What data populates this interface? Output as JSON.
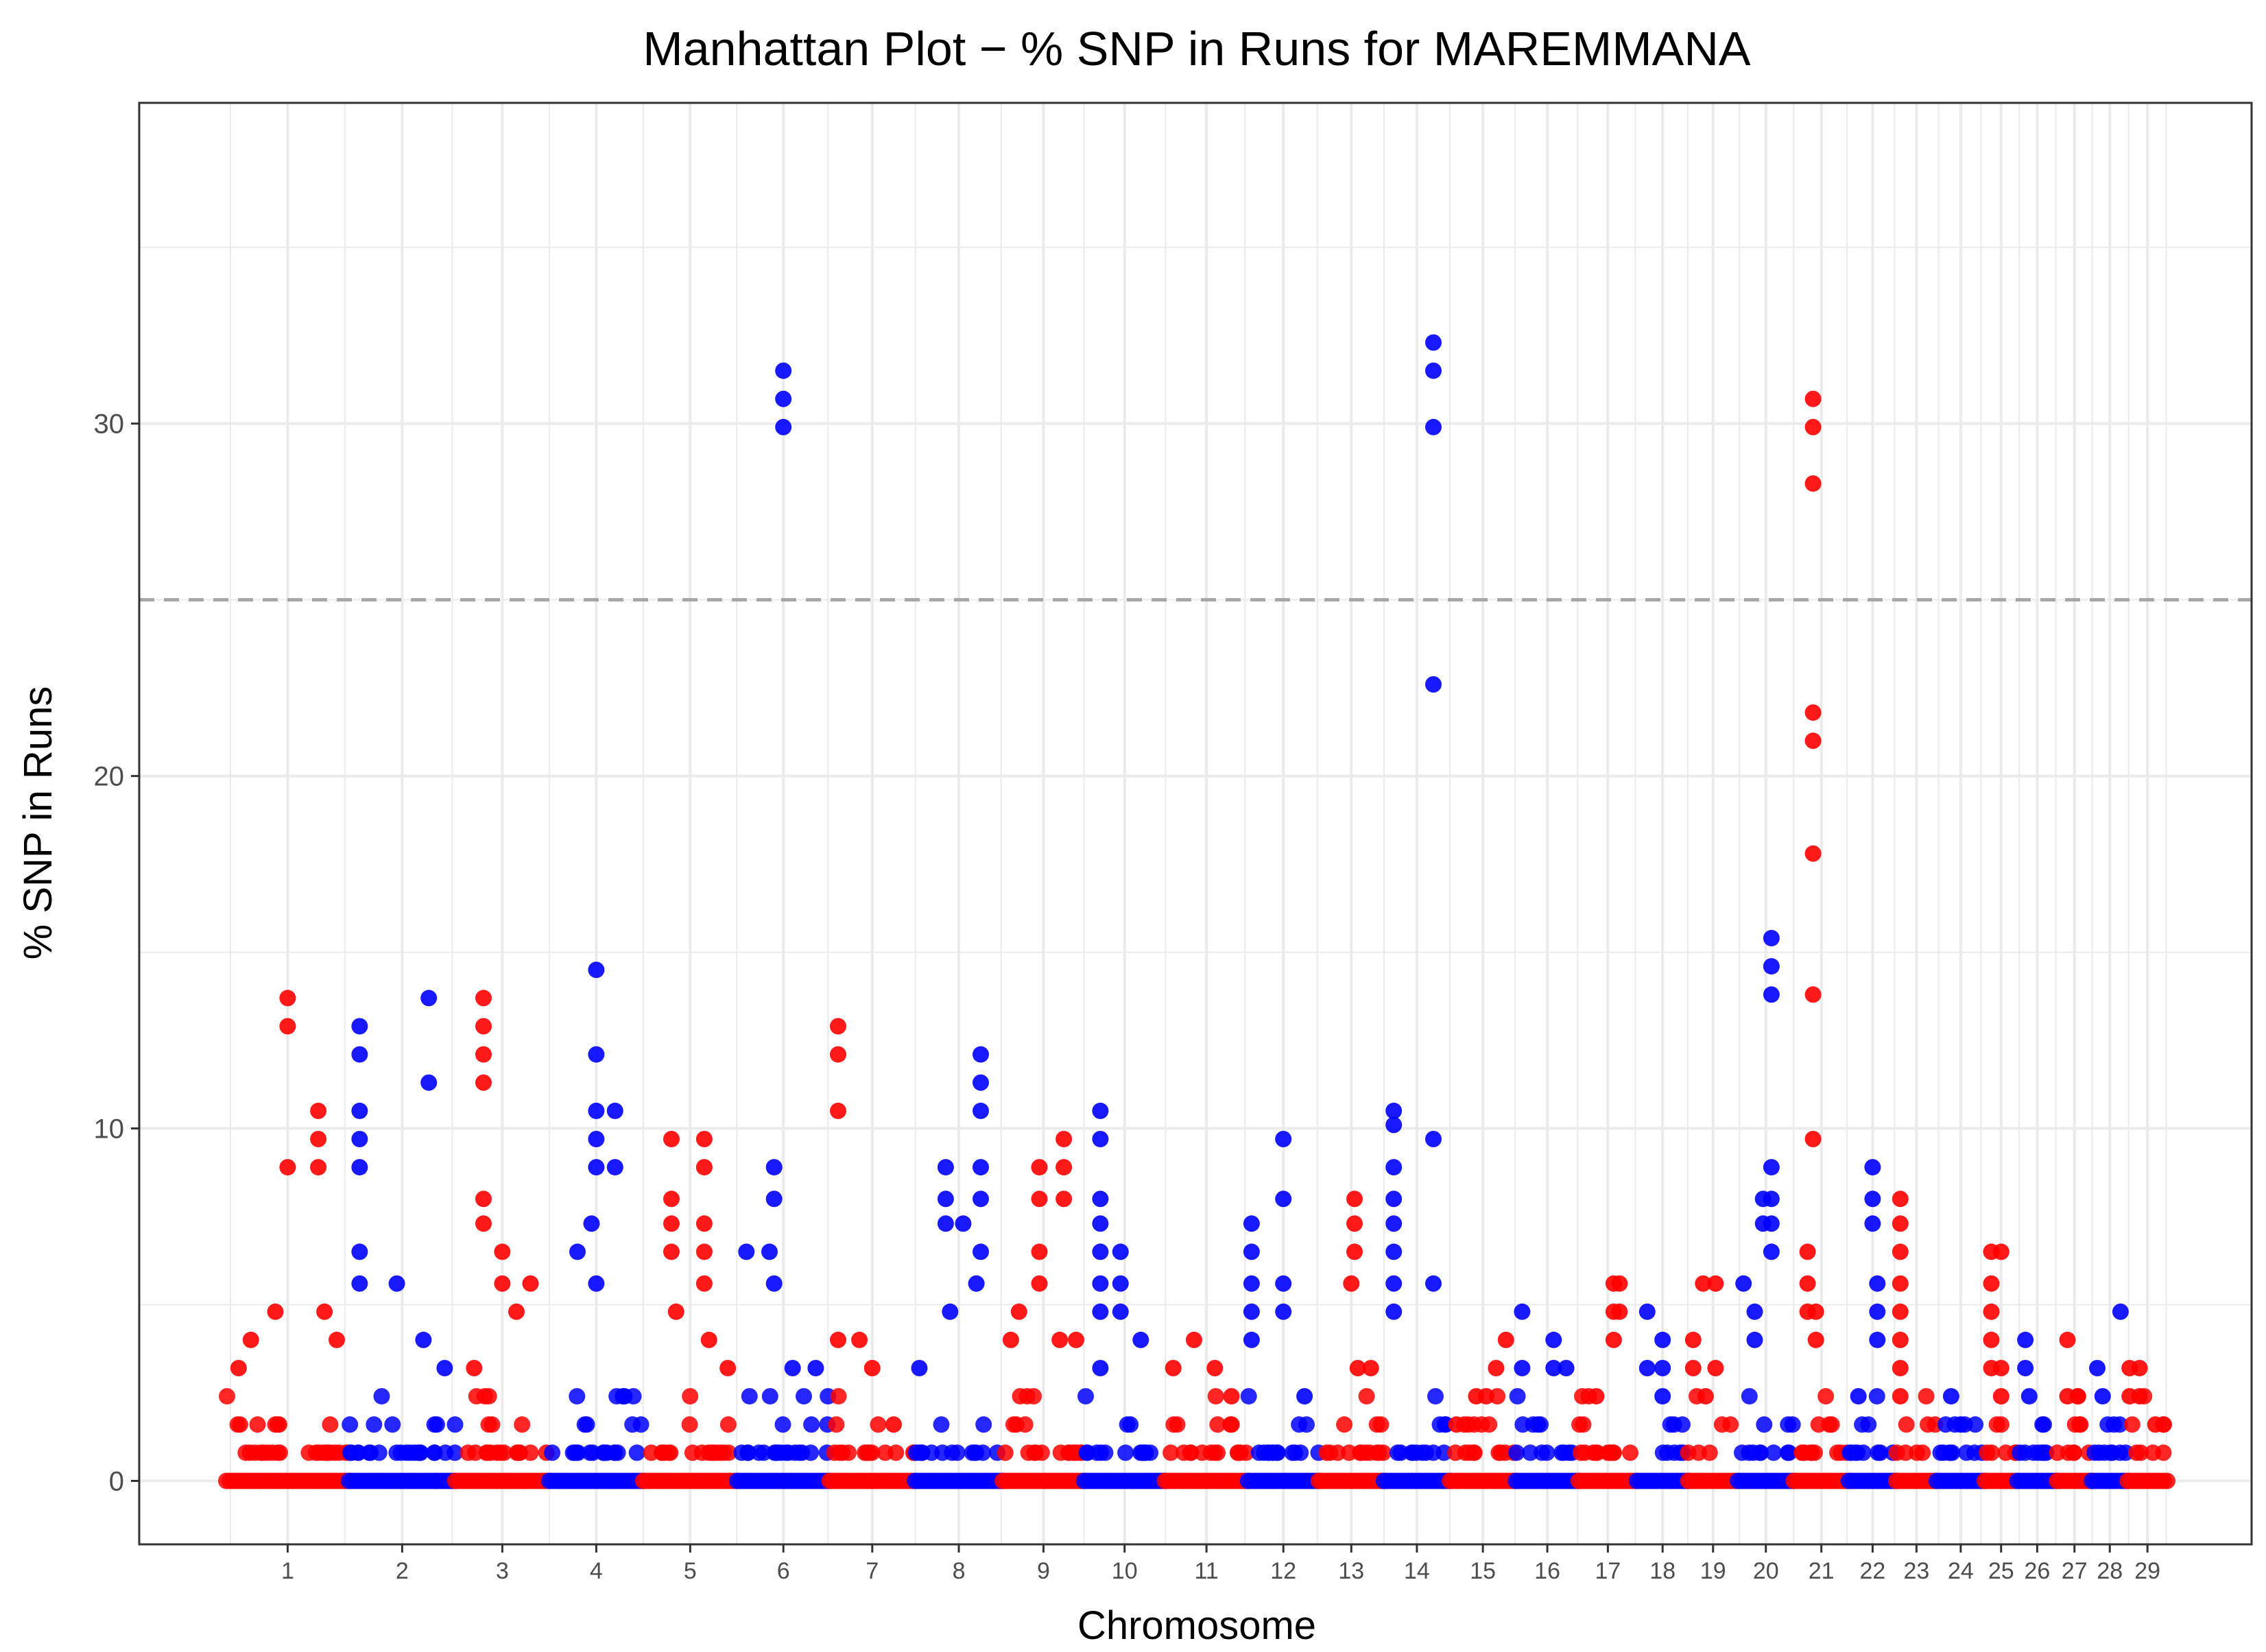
{
  "chart_data": {
    "type": "scatter",
    "title": "Manhattan Plot − % SNP in Runs for  MAREMMANA",
    "xlabel": "Chromosome",
    "ylabel": "% SNP in Runs",
    "ylim": [
      -1.8,
      39.1
    ],
    "yticks": [
      0,
      10,
      20,
      30
    ],
    "threshold": 25,
    "colors": {
      "odd": "#ff0000",
      "even": "#0000ff",
      "threshold": "#a6a6a6",
      "grid": "#ebebeb",
      "border": "#333333"
    },
    "chromosomes": [
      {
        "label": "1",
        "start": 0,
        "length": 158,
        "peaks": [
          [
            0.5,
            13.7
          ],
          [
            0.5,
            12.9
          ],
          [
            0.5,
            8.9
          ],
          [
            0.75,
            10.5
          ],
          [
            0.75,
            9.7
          ],
          [
            0.75,
            8.9
          ],
          [
            0.2,
            4.0
          ],
          [
            0.4,
            4.8
          ],
          [
            0.8,
            4.8
          ],
          [
            0.1,
            3.2
          ],
          [
            0.9,
            4.0
          ]
        ]
      },
      {
        "label": "2",
        "start": 158,
        "length": 137,
        "peaks": [
          [
            0.1,
            12.9
          ],
          [
            0.1,
            12.1
          ],
          [
            0.1,
            10.5
          ],
          [
            0.1,
            9.7
          ],
          [
            0.1,
            8.9
          ],
          [
            0.1,
            6.5
          ],
          [
            0.1,
            5.6
          ],
          [
            0.45,
            5.6
          ],
          [
            0.75,
            13.7
          ],
          [
            0.75,
            11.3
          ],
          [
            0.7,
            4.0
          ],
          [
            0.9,
            3.2
          ]
        ]
      },
      {
        "label": "3",
        "start": 295,
        "length": 121,
        "peaks": [
          [
            0.3,
            13.7
          ],
          [
            0.3,
            12.9
          ],
          [
            0.3,
            12.1
          ],
          [
            0.3,
            11.3
          ],
          [
            0.3,
            8.0
          ],
          [
            0.3,
            7.3
          ],
          [
            0.5,
            6.5
          ],
          [
            0.5,
            5.6
          ],
          [
            0.8,
            5.6
          ],
          [
            0.65,
            4.8
          ],
          [
            0.2,
            3.2
          ]
        ]
      },
      {
        "label": "4",
        "start": 416,
        "length": 121,
        "peaks": [
          [
            0.5,
            14.5
          ],
          [
            0.5,
            12.1
          ],
          [
            0.5,
            10.5
          ],
          [
            0.5,
            9.7
          ],
          [
            0.5,
            8.9
          ],
          [
            0.7,
            10.5
          ],
          [
            0.7,
            8.9
          ],
          [
            0.3,
            6.5
          ],
          [
            0.45,
            7.3
          ],
          [
            0.5,
            5.6
          ],
          [
            0.8,
            2.4
          ]
        ]
      },
      {
        "label": "5",
        "start": 537,
        "length": 121,
        "peaks": [
          [
            0.3,
            9.7
          ],
          [
            0.3,
            8.0
          ],
          [
            0.3,
            7.3
          ],
          [
            0.3,
            6.5
          ],
          [
            0.35,
            4.8
          ],
          [
            0.65,
            9.7
          ],
          [
            0.65,
            8.9
          ],
          [
            0.65,
            7.3
          ],
          [
            0.65,
            6.5
          ],
          [
            0.65,
            5.6
          ],
          [
            0.7,
            4.0
          ],
          [
            0.9,
            3.2
          ]
        ]
      },
      {
        "label": "6",
        "start": 658,
        "length": 119,
        "peaks": [
          [
            0.5,
            31.5
          ],
          [
            0.5,
            30.7
          ],
          [
            0.5,
            29.9
          ],
          [
            0.4,
            8.9
          ],
          [
            0.4,
            8.0
          ],
          [
            0.35,
            6.5
          ],
          [
            0.4,
            5.6
          ],
          [
            0.1,
            6.5
          ],
          [
            0.6,
            3.2
          ],
          [
            0.85,
            3.2
          ]
        ]
      },
      {
        "label": "7",
        "start": 777,
        "length": 110,
        "peaks": [
          [
            0.1,
            12.9
          ],
          [
            0.1,
            12.1
          ],
          [
            0.1,
            10.5
          ],
          [
            0.1,
            4.0
          ],
          [
            0.35,
            4.0
          ],
          [
            0.5,
            3.2
          ],
          [
            0.75,
            1.6
          ]
        ]
      },
      {
        "label": "8",
        "start": 887,
        "length": 113,
        "peaks": [
          [
            0.35,
            8.9
          ],
          [
            0.35,
            8.0
          ],
          [
            0.35,
            7.3
          ],
          [
            0.55,
            7.3
          ],
          [
            0.75,
            12.1
          ],
          [
            0.75,
            11.3
          ],
          [
            0.75,
            10.5
          ],
          [
            0.75,
            8.9
          ],
          [
            0.75,
            8.0
          ],
          [
            0.75,
            6.5
          ],
          [
            0.7,
            5.6
          ],
          [
            0.05,
            3.2
          ],
          [
            0.4,
            4.8
          ]
        ]
      },
      {
        "label": "9",
        "start": 1000,
        "length": 105,
        "peaks": [
          [
            0.2,
            4.8
          ],
          [
            0.1,
            4.0
          ],
          [
            0.45,
            8.9
          ],
          [
            0.45,
            8.0
          ],
          [
            0.45,
            6.5
          ],
          [
            0.45,
            5.6
          ],
          [
            0.75,
            9.7
          ],
          [
            0.75,
            8.9
          ],
          [
            0.75,
            8.0
          ],
          [
            0.7,
            4.0
          ],
          [
            0.9,
            4.0
          ]
        ]
      },
      {
        "label": "10",
        "start": 1105,
        "length": 104,
        "peaks": [
          [
            0.2,
            10.5
          ],
          [
            0.2,
            9.7
          ],
          [
            0.2,
            8.0
          ],
          [
            0.2,
            7.3
          ],
          [
            0.2,
            6.5
          ],
          [
            0.2,
            5.6
          ],
          [
            0.2,
            4.8
          ],
          [
            0.2,
            3.2
          ],
          [
            0.45,
            6.5
          ],
          [
            0.45,
            5.6
          ],
          [
            0.45,
            4.8
          ],
          [
            0.7,
            4.0
          ]
        ]
      },
      {
        "label": "11",
        "start": 1209,
        "length": 107,
        "peaks": [
          [
            0.1,
            3.2
          ],
          [
            0.35,
            4.0
          ],
          [
            0.6,
            3.2
          ],
          [
            0.8,
            2.4
          ]
        ]
      },
      {
        "label": "12",
        "start": 1316,
        "length": 91,
        "peaks": [
          [
            0.05,
            7.3
          ],
          [
            0.05,
            6.5
          ],
          [
            0.05,
            5.6
          ],
          [
            0.05,
            4.8
          ],
          [
            0.05,
            4.0
          ],
          [
            0.5,
            9.7
          ],
          [
            0.5,
            8.0
          ],
          [
            0.5,
            5.6
          ],
          [
            0.5,
            4.8
          ],
          [
            0.8,
            2.4
          ]
        ]
      },
      {
        "label": "13",
        "start": 1407,
        "length": 84,
        "peaks": [
          [
            0.55,
            8.0
          ],
          [
            0.55,
            7.3
          ],
          [
            0.55,
            6.5
          ],
          [
            0.5,
            5.6
          ],
          [
            0.6,
            3.2
          ],
          [
            0.8,
            3.2
          ]
        ]
      },
      {
        "label": "14",
        "start": 1491,
        "length": 85,
        "peaks": [
          [
            0.75,
            32.3
          ],
          [
            0.75,
            31.5
          ],
          [
            0.75,
            29.9
          ],
          [
            0.75,
            22.6
          ],
          [
            0.15,
            10.5
          ],
          [
            0.15,
            10.1
          ],
          [
            0.15,
            8.9
          ],
          [
            0.15,
            8.0
          ],
          [
            0.15,
            7.3
          ],
          [
            0.15,
            6.5
          ],
          [
            0.15,
            5.6
          ],
          [
            0.15,
            4.8
          ],
          [
            0.75,
            9.7
          ],
          [
            0.75,
            5.6
          ]
        ]
      },
      {
        "label": "15",
        "start": 1576,
        "length": 85,
        "peaks": [
          [
            0.4,
            2.4
          ],
          [
            0.55,
            2.4
          ],
          [
            0.7,
            3.2
          ],
          [
            0.85,
            4.0
          ],
          [
            0.1,
            1.6
          ]
        ]
      },
      {
        "label": "16",
        "start": 1661,
        "length": 81,
        "peaks": [
          [
            0.1,
            4.8
          ],
          [
            0.1,
            3.2
          ],
          [
            0.35,
            1.6
          ],
          [
            0.6,
            4.0
          ],
          [
            0.6,
            3.2
          ],
          [
            0.8,
            3.2
          ]
        ]
      },
      {
        "label": "17",
        "start": 1742,
        "length": 75,
        "peaks": [
          [
            0.6,
            5.6
          ],
          [
            0.6,
            4.8
          ],
          [
            0.7,
            5.6
          ],
          [
            0.7,
            4.8
          ],
          [
            0.6,
            4.0
          ],
          [
            0.3,
            2.4
          ]
        ]
      },
      {
        "label": "18",
        "start": 1817,
        "length": 66,
        "peaks": [
          [
            0.2,
            4.8
          ],
          [
            0.2,
            3.2
          ],
          [
            0.5,
            4.0
          ],
          [
            0.5,
            3.2
          ],
          [
            0.5,
            2.4
          ]
        ]
      },
      {
        "label": "19",
        "start": 1883,
        "length": 64,
        "peaks": [
          [
            0.1,
            4.0
          ],
          [
            0.1,
            3.2
          ],
          [
            0.3,
            5.6
          ],
          [
            0.55,
            5.6
          ],
          [
            0.55,
            3.2
          ],
          [
            0.35,
            2.4
          ]
        ]
      },
      {
        "label": "20",
        "start": 1947,
        "length": 72,
        "peaks": [
          [
            0.1,
            5.6
          ],
          [
            0.3,
            4.8
          ],
          [
            0.3,
            4.0
          ],
          [
            0.45,
            8.0
          ],
          [
            0.45,
            7.3
          ],
          [
            0.6,
            15.4
          ],
          [
            0.6,
            14.6
          ],
          [
            0.6,
            13.8
          ],
          [
            0.6,
            8.9
          ],
          [
            0.6,
            8.0
          ],
          [
            0.6,
            7.3
          ],
          [
            0.6,
            6.5
          ]
        ]
      },
      {
        "label": "21",
        "start": 2019,
        "length": 71,
        "peaks": [
          [
            0.35,
            30.7
          ],
          [
            0.35,
            29.9
          ],
          [
            0.35,
            28.3
          ],
          [
            0.35,
            21.8
          ],
          [
            0.35,
            21.0
          ],
          [
            0.35,
            17.8
          ],
          [
            0.35,
            13.8
          ],
          [
            0.35,
            9.7
          ],
          [
            0.25,
            6.5
          ],
          [
            0.25,
            5.6
          ],
          [
            0.25,
            4.8
          ],
          [
            0.4,
            4.8
          ],
          [
            0.4,
            4.0
          ]
        ]
      },
      {
        "label": "22",
        "start": 2090,
        "length": 61,
        "peaks": [
          [
            0.2,
            2.4
          ],
          [
            0.5,
            8.9
          ],
          [
            0.5,
            8.0
          ],
          [
            0.5,
            7.3
          ],
          [
            0.6,
            5.6
          ],
          [
            0.6,
            4.8
          ],
          [
            0.6,
            4.0
          ]
        ]
      },
      {
        "label": "23",
        "start": 2151,
        "length": 52,
        "peaks": [
          [
            0.1,
            8.0
          ],
          [
            0.1,
            7.3
          ],
          [
            0.1,
            6.5
          ],
          [
            0.1,
            5.6
          ],
          [
            0.1,
            4.8
          ],
          [
            0.1,
            4.0
          ],
          [
            0.1,
            3.2
          ],
          [
            0.1,
            2.4
          ]
        ]
      },
      {
        "label": "24",
        "start": 2203,
        "length": 62,
        "peaks": [
          [
            0.3,
            2.4
          ],
          [
            0.5,
            1.6
          ]
        ]
      },
      {
        "label": "25",
        "start": 2265,
        "length": 42,
        "peaks": [
          [
            0.2,
            6.5
          ],
          [
            0.2,
            5.6
          ],
          [
            0.2,
            4.8
          ],
          [
            0.2,
            4.0
          ],
          [
            0.2,
            3.2
          ],
          [
            0.5,
            6.5
          ],
          [
            0.5,
            3.2
          ],
          [
            0.5,
            2.4
          ]
        ]
      },
      {
        "label": "26",
        "start": 2307,
        "length": 51,
        "peaks": [
          [
            0.2,
            4.0
          ],
          [
            0.2,
            3.2
          ],
          [
            0.3,
            2.4
          ]
        ]
      },
      {
        "label": "27",
        "start": 2358,
        "length": 45,
        "peaks": [
          [
            0.3,
            4.0
          ],
          [
            0.3,
            2.4
          ],
          [
            0.6,
            2.4
          ]
        ]
      },
      {
        "label": "28",
        "start": 2403,
        "length": 46,
        "peaks": [
          [
            0.15,
            3.2
          ],
          [
            0.3,
            2.4
          ],
          [
            0.8,
            4.8
          ]
        ]
      },
      {
        "label": "29",
        "start": 2449,
        "length": 51,
        "peaks": [
          [
            0.05,
            3.2
          ],
          [
            0.05,
            2.4
          ],
          [
            0.3,
            3.2
          ],
          [
            0.3,
            2.4
          ],
          [
            0.7,
            1.6
          ]
        ]
      }
    ]
  }
}
